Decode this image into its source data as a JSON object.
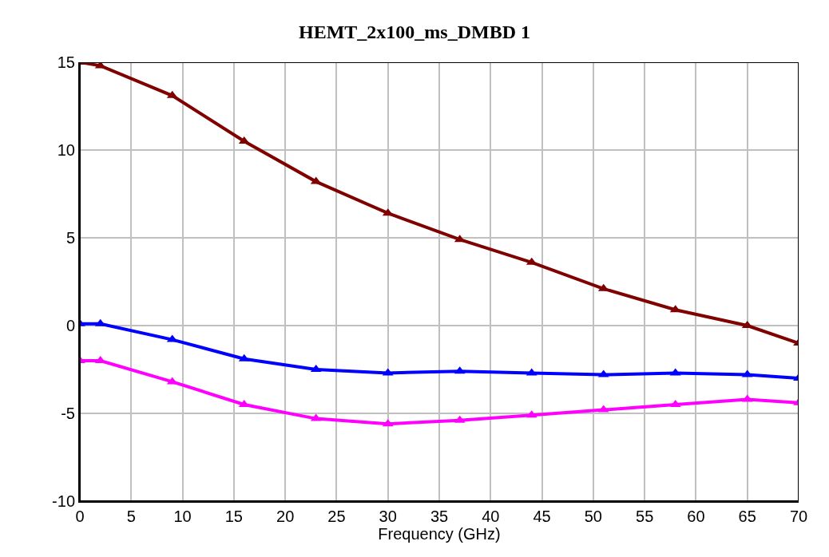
{
  "chart_data": {
    "type": "line",
    "title": "HEMT_2x100_ms_DMBD 1",
    "xlabel": "Frequency (GHz)",
    "x": [
      0,
      2,
      9,
      16,
      23,
      30,
      37,
      44,
      51,
      58,
      65,
      70
    ],
    "series": [
      {
        "color": "#800000",
        "values": [
          15,
          14.8,
          13.1,
          10.5,
          8.2,
          6.4,
          4.9,
          3.6,
          2.1,
          0.9,
          0,
          -1
        ]
      },
      {
        "color": "#0000ff",
        "values": [
          0.1,
          0.1,
          -0.8,
          -1.9,
          -2.5,
          -2.7,
          -2.6,
          -2.7,
          -2.8,
          -2.7,
          -2.8,
          -3.0
        ]
      },
      {
        "color": "#ff00ff",
        "values": [
          -2,
          -2,
          -3.2,
          -4.5,
          -5.3,
          -5.6,
          -5.4,
          -5.1,
          -4.8,
          -4.5,
          -4.2,
          -4.4
        ]
      }
    ],
    "xlim": [
      0,
      70
    ],
    "xticks": [
      0,
      5,
      10,
      15,
      20,
      25,
      30,
      35,
      40,
      45,
      50,
      55,
      60,
      65,
      70
    ],
    "ylim": [
      -10,
      15
    ],
    "yticks": [
      -10,
      -5,
      0,
      5,
      10,
      15
    ],
    "grid": true,
    "marker": "triangle",
    "line_style": "solid"
  }
}
